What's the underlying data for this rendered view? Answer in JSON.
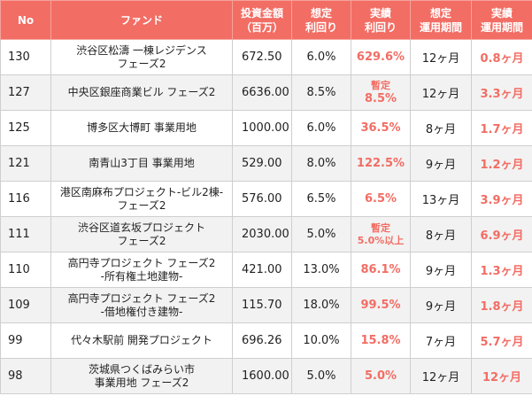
{
  "header": {
    "no": "No",
    "fund": "ファンド",
    "amount": [
      "投資金額",
      "（百万）"
    ],
    "expected_yield": [
      "想定",
      "利回り"
    ],
    "actual_yield": [
      "実績",
      "利回り"
    ],
    "expected_period": [
      "想定",
      "運用期間"
    ],
    "actual_period": [
      "実績",
      "運用期間"
    ]
  },
  "rows": [
    {
      "no": "130",
      "fund": [
        "渋谷区松濤 一棟レジデンス",
        "フェーズ2"
      ],
      "amount": "672.50",
      "expected_yield": "6.0%",
      "actual_yield": [
        "629.6%"
      ],
      "expected_period": "12ヶ月",
      "actual_period": "0.8ヶ月"
    },
    {
      "no": "127",
      "fund": [
        "中央区銀座商業ビル フェーズ2"
      ],
      "amount": "6636.00",
      "expected_yield": "8.5%",
      "actual_yield": [
        "暫定",
        "8.5%"
      ],
      "expected_period": "12ヶ月",
      "actual_period": "3.3ヶ月"
    },
    {
      "no": "125",
      "fund": [
        "博多区大博町 事業用地"
      ],
      "amount": "1000.00",
      "expected_yield": "6.0%",
      "actual_yield": [
        "36.5%"
      ],
      "expected_period": "8ヶ月",
      "actual_period": "1.7ヶ月"
    },
    {
      "no": "121",
      "fund": [
        "南青山3丁目 事業用地"
      ],
      "amount": "529.00",
      "expected_yield": "8.0%",
      "actual_yield": [
        "122.5%"
      ],
      "expected_period": "9ヶ月",
      "actual_period": "1.2ヶ月"
    },
    {
      "no": "116",
      "fund": [
        "港区南麻布プロジェクト-ビル2棟-",
        "フェーズ2"
      ],
      "amount": "576.00",
      "expected_yield": "6.5%",
      "actual_yield": [
        "6.5%"
      ],
      "expected_period": "13ヶ月",
      "actual_period": "3.9ヶ月"
    },
    {
      "no": "111",
      "fund": [
        "渋谷区道玄坂プロジェクト",
        "フェーズ2"
      ],
      "amount": "2030.00",
      "expected_yield": "5.0%",
      "actual_yield": [
        "暫定",
        "5.0%以上"
      ],
      "expected_period": "8ヶ月",
      "actual_period": "6.9ヶ月"
    },
    {
      "no": "110",
      "fund": [
        "高円寺プロジェクト フェーズ2",
        "-所有権土地建物-"
      ],
      "amount": "421.00",
      "expected_yield": "13.0%",
      "actual_yield": [
        "86.1%"
      ],
      "expected_period": "9ヶ月",
      "actual_period": "1.3ヶ月"
    },
    {
      "no": "109",
      "fund": [
        "高円寺プロジェクト フェーズ2",
        "-借地権付き建物-"
      ],
      "amount": "115.70",
      "expected_yield": "18.0%",
      "actual_yield": [
        "99.5%"
      ],
      "expected_period": "9ヶ月",
      "actual_period": "1.8ヶ月"
    },
    {
      "no": "99",
      "fund": [
        "代々木駅前 開発プロジェクト"
      ],
      "amount": "696.26",
      "expected_yield": "10.0%",
      "actual_yield": [
        "15.8%"
      ],
      "expected_period": "7ヶ月",
      "actual_period": "5.7ヶ月"
    },
    {
      "no": "98",
      "fund": [
        "茨城県つくばみらい市",
        "事業用地 フェーズ2"
      ],
      "amount": "1600.00",
      "expected_yield": "5.0%",
      "actual_yield": [
        "5.0%"
      ],
      "expected_period": "12ヶ月",
      "actual_period": "12ヶ月"
    }
  ]
}
